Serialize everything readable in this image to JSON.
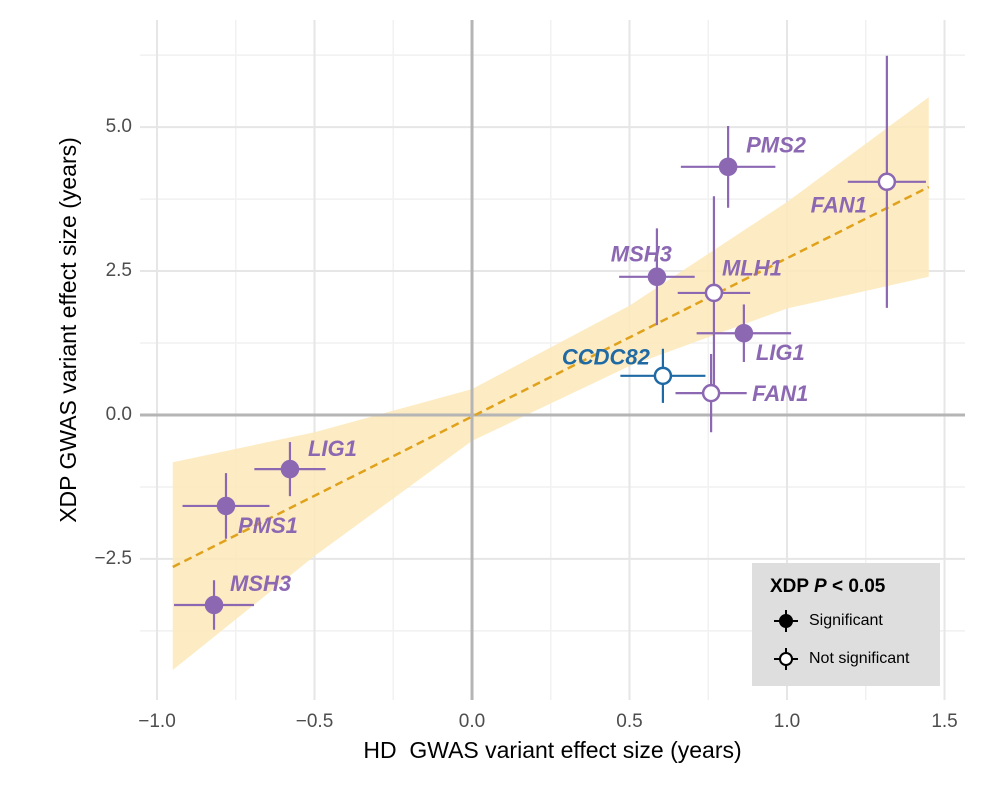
{
  "chart_data": {
    "type": "scatter",
    "xlabel": "HD  GWAS variant effect size (years)",
    "ylabel": "XDP GWAS variant effect size (years)",
    "labels": [
      "PMS2",
      "FAN1",
      "MSH3",
      "MLH1",
      "LIG1",
      "CCDC82",
      "FAN1",
      "LIG1",
      "PMS1",
      "MSH3"
    ],
    "x": [
      0.813,
      1.317,
      0.587,
      0.768,
      0.863,
      0.606,
      0.759,
      -0.578,
      -0.781,
      -0.819
    ],
    "values": [
      4.31,
      4.05,
      2.4,
      2.12,
      1.42,
      0.68,
      0.38,
      -0.94,
      -1.58,
      -3.3
    ],
    "xerr": [
      0.15,
      0.124,
      0.12,
      0.115,
      0.15,
      0.135,
      0.113,
      0.113,
      0.138,
      0.127
    ],
    "yerr": [
      0.71,
      2.19,
      0.84,
      1.68,
      0.5,
      0.47,
      0.68,
      0.47,
      0.57,
      0.43
    ],
    "significant": [
      true,
      false,
      true,
      false,
      true,
      false,
      false,
      true,
      true,
      true
    ],
    "colors": [
      "#8c68b3",
      "#8c68b3",
      "#8c68b3",
      "#8c68b3",
      "#8c68b3",
      "#1f6aa5",
      "#8c68b3",
      "#8c68b3",
      "#8c68b3",
      "#8c68b3"
    ],
    "fit": {
      "x": [
        -0.95,
        1.45
      ],
      "y": [
        -2.64,
        3.96
      ],
      "color": "#e0a21c"
    },
    "band": {
      "x": [
        -0.95,
        -0.5,
        0,
        0.5,
        1.0,
        1.45
      ],
      "lower": [
        -4.43,
        -2.45,
        -0.45,
        0.85,
        1.85,
        2.4
      ],
      "upper": [
        -0.82,
        -0.3,
        0.45,
        1.9,
        3.7,
        5.52
      ],
      "color": "#fde9b8"
    },
    "xlim": [
      -1.054,
      1.565
    ],
    "ylim": [
      -4.95,
      6.86
    ],
    "xticks": [
      {
        "value": -1.0,
        "label": "−1.0"
      },
      {
        "value": -0.5,
        "label": "−0.5"
      },
      {
        "value": 0,
        "label": "0.0"
      },
      0.5,
      {
        "value": 1.0,
        "label": "1.0"
      },
      1.5
    ],
    "yticks": [
      {
        "value": -2.5,
        "label": "−2.5"
      },
      {
        "value": 0,
        "label": "0.0"
      },
      2.5,
      {
        "value": 5.0,
        "label": "5.0"
      }
    ],
    "minor_xticks": [
      -0.75,
      -0.25,
      0.25,
      0.75,
      1.25
    ],
    "minor_yticks": [
      -3.75,
      -1.25,
      1.25,
      3.75,
      6.25
    ],
    "grid": true,
    "legend": {
      "title": [
        "XDP ",
        "P",
        " < 0.05"
      ],
      "entries": [
        "Significant",
        "Not significant"
      ],
      "position": "bottom-right"
    }
  }
}
